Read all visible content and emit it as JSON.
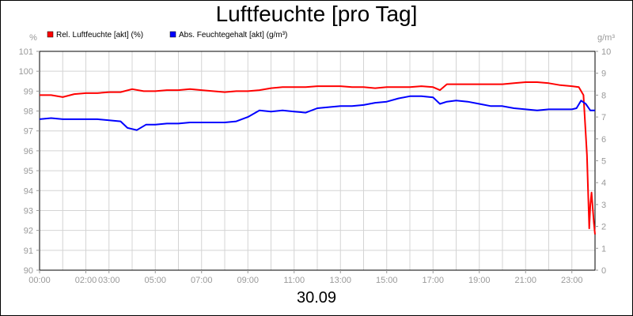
{
  "title": "Luftfeuchte [pro Tag]",
  "date_label": "30.09",
  "chart_data": {
    "type": "line",
    "title": "Luftfeuchte [pro Tag]",
    "y_left_unit": "%",
    "y_right_unit": "g/m³",
    "y_left_range": [
      90,
      101
    ],
    "y_right_range": [
      0,
      10
    ],
    "y_left_ticks": [
      "90",
      "91",
      "92",
      "93",
      "94",
      "95",
      "96",
      "97",
      "98",
      "99",
      "100",
      "101"
    ],
    "y_right_ticks": [
      "0",
      "1",
      "2",
      "3",
      "4",
      "5",
      "6",
      "7",
      "8",
      "9",
      "10"
    ],
    "x_range": [
      0,
      24
    ],
    "x_tick_labels": [
      {
        "h": 0,
        "label": "00:00"
      },
      {
        "h": 2,
        "label": "02:00"
      },
      {
        "h": 3,
        "label": "03:00"
      },
      {
        "h": 5,
        "label": "05:00"
      },
      {
        "h": 7,
        "label": "07:00"
      },
      {
        "h": 9,
        "label": "09:00"
      },
      {
        "h": 11,
        "label": "11:00"
      },
      {
        "h": 13,
        "label": "13:00"
      },
      {
        "h": 15,
        "label": "15:00"
      },
      {
        "h": 17,
        "label": "17:00"
      },
      {
        "h": 19,
        "label": "19:00"
      },
      {
        "h": 21,
        "label": "21:00"
      },
      {
        "h": 23,
        "label": "23:00"
      }
    ],
    "grid_hours": [
      1,
      2,
      3,
      4,
      5,
      6,
      7,
      8,
      9,
      10,
      11,
      12,
      13,
      14,
      15,
      16,
      17,
      18,
      19,
      20,
      21,
      22,
      23
    ],
    "grid": true,
    "legend_position": "top-left",
    "series": [
      {
        "name": "Rel. Luftfeuchte [akt] (%)",
        "color": "#ff0000",
        "axis": "left",
        "x": [
          0,
          0.5,
          1.0,
          1.5,
          2.0,
          2.5,
          3.0,
          3.5,
          4.0,
          4.5,
          5.0,
          5.5,
          6.0,
          6.5,
          7.0,
          7.5,
          8.0,
          8.5,
          9.0,
          9.5,
          10.0,
          10.5,
          11.0,
          11.5,
          12.0,
          12.5,
          13.0,
          13.5,
          14.0,
          14.5,
          15.0,
          15.5,
          16.0,
          16.5,
          17.0,
          17.3,
          17.6,
          18.0,
          18.5,
          19.0,
          19.5,
          20.0,
          20.5,
          21.0,
          21.5,
          22.0,
          22.5,
          23.0,
          23.3,
          23.5,
          23.65,
          23.75,
          23.8,
          23.85,
          23.95,
          24.0
        ],
        "y": [
          98.8,
          98.8,
          98.7,
          98.85,
          98.9,
          98.9,
          98.95,
          98.95,
          99.1,
          99.0,
          99.0,
          99.05,
          99.05,
          99.1,
          99.05,
          99.0,
          98.95,
          99.0,
          99.0,
          99.05,
          99.15,
          99.2,
          99.2,
          99.2,
          99.25,
          99.25,
          99.25,
          99.2,
          99.2,
          99.15,
          99.2,
          99.2,
          99.2,
          99.25,
          99.2,
          99.05,
          99.35,
          99.35,
          99.35,
          99.35,
          99.35,
          99.35,
          99.4,
          99.45,
          99.45,
          99.4,
          99.3,
          99.25,
          99.2,
          98.8,
          95.8,
          92.1,
          93.3,
          93.9,
          92.4,
          91.8
        ]
      },
      {
        "name": "Abs. Feuchtegehalt [akt] (g/m³)",
        "color": "#0000ff",
        "axis": "right",
        "x": [
          0,
          0.5,
          1.0,
          1.5,
          2.0,
          2.5,
          3.0,
          3.5,
          3.8,
          4.2,
          4.6,
          5.0,
          5.5,
          6.0,
          6.5,
          7.0,
          7.5,
          8.0,
          8.5,
          9.0,
          9.5,
          10.0,
          10.5,
          11.0,
          11.5,
          12.0,
          12.5,
          13.0,
          13.5,
          14.0,
          14.5,
          15.0,
          15.5,
          16.0,
          16.5,
          17.0,
          17.3,
          17.6,
          18.0,
          18.5,
          19.0,
          19.5,
          20.0,
          20.5,
          21.0,
          21.5,
          22.0,
          22.5,
          23.0,
          23.2,
          23.4,
          23.6,
          23.8,
          24.0
        ],
        "y": [
          6.9,
          6.95,
          6.9,
          6.9,
          6.9,
          6.9,
          6.85,
          6.8,
          6.5,
          6.4,
          6.65,
          6.65,
          6.7,
          6.7,
          6.75,
          6.75,
          6.75,
          6.75,
          6.8,
          7.0,
          7.3,
          7.25,
          7.3,
          7.25,
          7.2,
          7.4,
          7.45,
          7.5,
          7.5,
          7.55,
          7.65,
          7.7,
          7.85,
          7.95,
          7.95,
          7.9,
          7.6,
          7.7,
          7.75,
          7.7,
          7.6,
          7.5,
          7.5,
          7.4,
          7.35,
          7.3,
          7.35,
          7.35,
          7.35,
          7.4,
          7.75,
          7.6,
          7.3,
          7.3
        ]
      }
    ]
  }
}
